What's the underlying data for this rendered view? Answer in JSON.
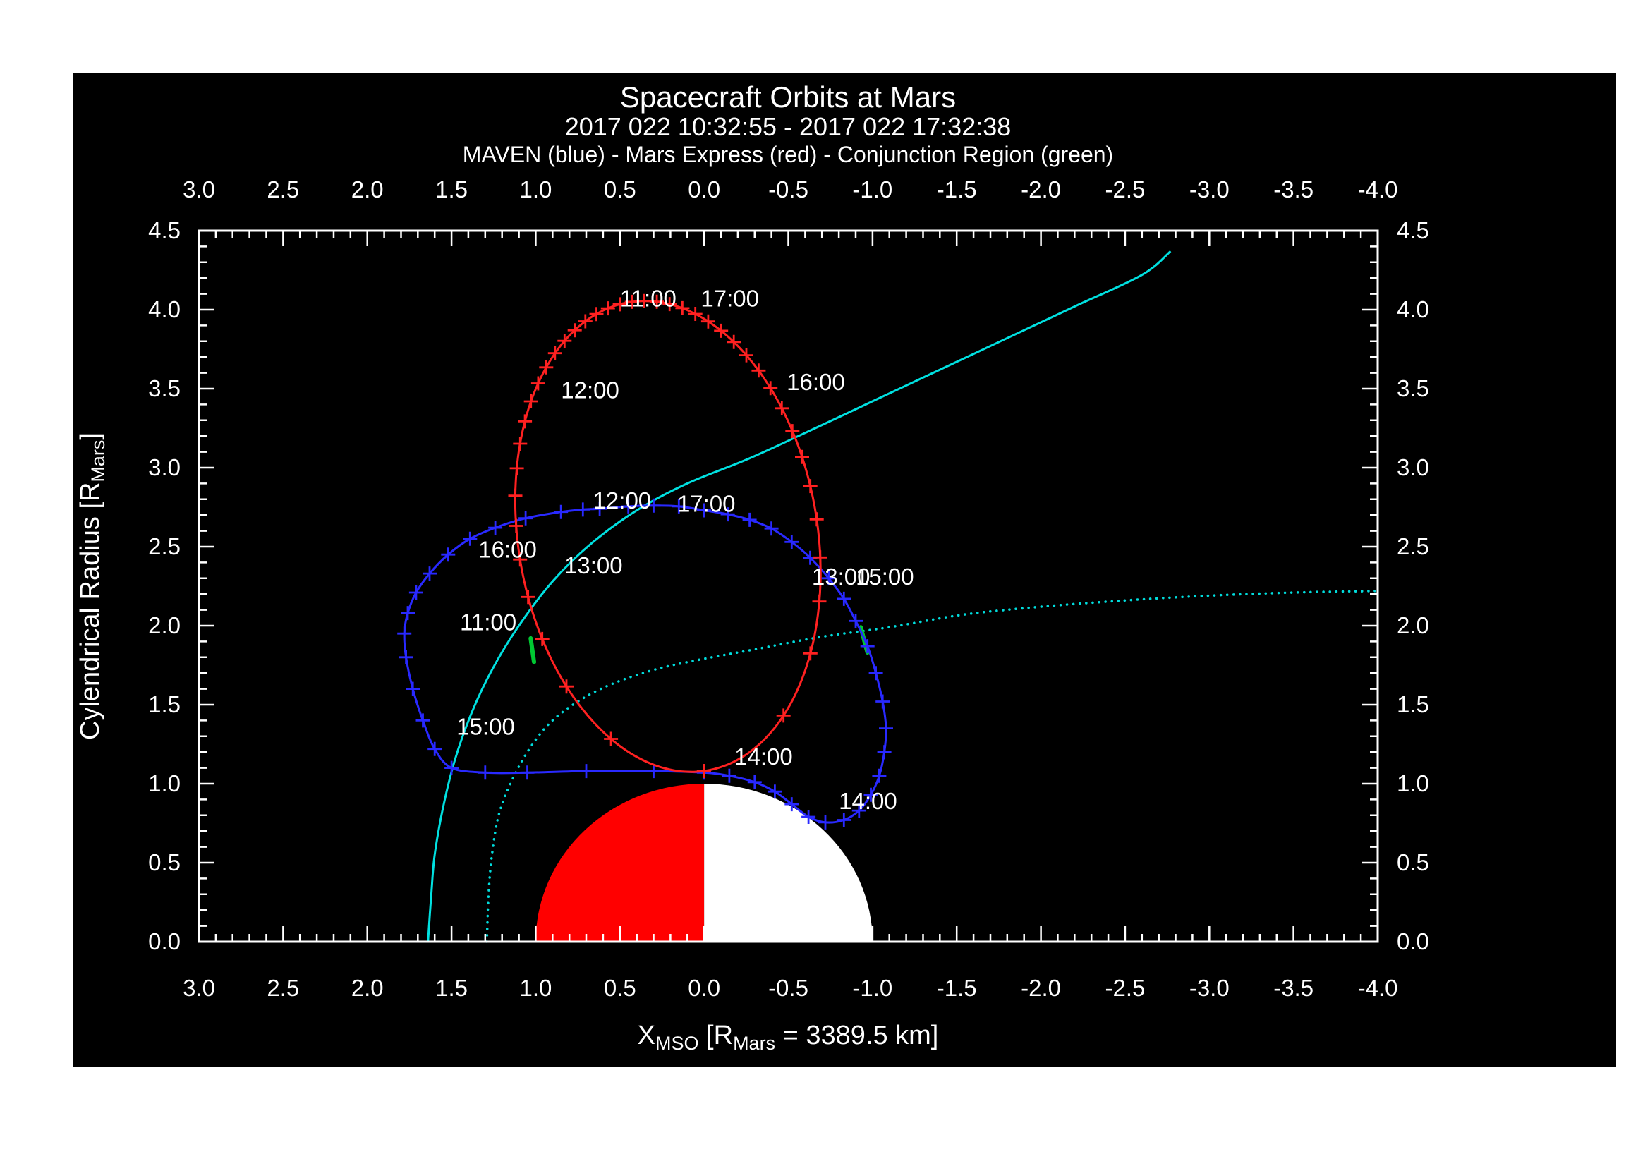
{
  "page": {
    "background": "#ffffff",
    "plot_background": "#000000"
  },
  "chart_data": {
    "type": "line",
    "title": "Spacecraft Orbits at Mars",
    "subtitle": "2017 022 10:32:55 - 2017 022 17:32:38",
    "legend": "MAVEN (blue) - Mars Express (red) - Conjunction Region (green)",
    "xlabel_parts": {
      "main": "X",
      "main_sub": "MSO",
      "mid": " [R",
      "mid_sub": "Mars",
      "end": " = 3389.5 km]"
    },
    "ylabel_parts": {
      "main": "Cylendrical Radius [R",
      "main_sub": "Mars",
      "end": "]"
    },
    "xlim": [
      3.0,
      -4.0
    ],
    "ylim": [
      0.0,
      4.5
    ],
    "x_tick_labels": [
      "3.0",
      "2.5",
      "2.0",
      "1.5",
      "1.0",
      "0.5",
      "0.0",
      "-0.5",
      "-1.0",
      "-1.5",
      "-2.0",
      "-2.5",
      "-3.0",
      "-3.5",
      "-4.0"
    ],
    "y_tick_labels": [
      "0.0",
      "0.5",
      "1.0",
      "1.5",
      "2.0",
      "2.5",
      "3.0",
      "3.5",
      "4.0",
      "4.5"
    ],
    "minor_tick_step": 0.1,
    "colors": {
      "maven": "#2929ff",
      "mex": "#ff2121",
      "bow_shock": "#00e0e0",
      "imb": "#00dcdc",
      "conjunction": "#00c832",
      "frame": "#ffffff",
      "mars_day": "#ff0000",
      "mars_night": "#ffffff"
    },
    "mars": {
      "radius": 1.0,
      "day_color": "#ff0000",
      "night_color": "#ffffff"
    },
    "series": {
      "maven_orbit": {
        "name": "MAVEN",
        "color_key": "maven",
        "closed": true,
        "points": [
          [
            0.85,
            2.72
          ],
          [
            0.72,
            2.735
          ],
          [
            0.62,
            2.74
          ],
          [
            0.45,
            2.755
          ],
          [
            0.3,
            2.76
          ],
          [
            0.15,
            2.755
          ],
          [
            0.0,
            2.73
          ],
          [
            -0.14,
            2.705
          ],
          [
            -0.27,
            2.67
          ],
          [
            -0.4,
            2.615
          ],
          [
            -0.52,
            2.53
          ],
          [
            -0.63,
            2.43
          ],
          [
            -0.74,
            2.3
          ],
          [
            -0.83,
            2.17
          ],
          [
            -0.9,
            2.03
          ],
          [
            -0.97,
            1.87
          ],
          [
            -1.02,
            1.7
          ],
          [
            -1.06,
            1.52
          ],
          [
            -1.08,
            1.35
          ],
          [
            -1.07,
            1.2
          ],
          [
            -1.04,
            1.05
          ],
          [
            -0.99,
            0.93
          ],
          [
            -0.92,
            0.83
          ],
          [
            -0.83,
            0.77
          ],
          [
            -0.72,
            0.755
          ],
          [
            -0.62,
            0.79
          ],
          [
            -0.52,
            0.87
          ],
          [
            -0.42,
            0.95
          ],
          [
            -0.3,
            1.01
          ],
          [
            -0.15,
            1.05
          ],
          [
            0.0,
            1.07
          ],
          [
            0.3,
            1.08
          ],
          [
            0.7,
            1.08
          ],
          [
            1.05,
            1.07
          ],
          [
            1.3,
            1.07
          ],
          [
            1.5,
            1.1
          ],
          [
            1.6,
            1.22
          ],
          [
            1.67,
            1.4
          ],
          [
            1.73,
            1.6
          ],
          [
            1.77,
            1.8
          ],
          [
            1.78,
            1.95
          ],
          [
            1.76,
            2.08
          ],
          [
            1.71,
            2.21
          ],
          [
            1.63,
            2.33
          ],
          [
            1.52,
            2.45
          ],
          [
            1.39,
            2.55
          ],
          [
            1.24,
            2.62
          ],
          [
            1.06,
            2.68
          ]
        ]
      },
      "mex_orbit": {
        "name": "Mars Express",
        "color_key": "mex",
        "ellipse": {
          "center": [
            0.215,
            2.565
          ],
          "a": 1.5,
          "b": 0.89,
          "tilt_deg": 8.2,
          "ecc": 0.81,
          "n_marks": 42
        }
      },
      "bow_shock": {
        "color_key": "bow_shock",
        "style": "solid",
        "points": [
          [
            1.64,
            0.0
          ],
          [
            1.62,
            0.3
          ],
          [
            1.6,
            0.55
          ],
          [
            1.55,
            0.85
          ],
          [
            1.48,
            1.15
          ],
          [
            1.38,
            1.45
          ],
          [
            1.26,
            1.72
          ],
          [
            1.1,
            2.0
          ],
          [
            0.9,
            2.28
          ],
          [
            0.67,
            2.52
          ],
          [
            0.4,
            2.73
          ],
          [
            0.1,
            2.9
          ],
          [
            -0.25,
            3.05
          ],
          [
            -0.6,
            3.22
          ],
          [
            -1.0,
            3.42
          ],
          [
            -1.4,
            3.62
          ],
          [
            -1.8,
            3.82
          ],
          [
            -2.2,
            4.02
          ],
          [
            -2.6,
            4.22
          ],
          [
            -2.77,
            4.37
          ]
        ]
      },
      "induced_boundary": {
        "color_key": "imb",
        "style": "dotted",
        "points": [
          [
            1.29,
            0.0
          ],
          [
            1.28,
            0.3
          ],
          [
            1.26,
            0.55
          ],
          [
            1.22,
            0.8
          ],
          [
            1.15,
            1.0
          ],
          [
            1.05,
            1.2
          ],
          [
            0.92,
            1.38
          ],
          [
            0.75,
            1.52
          ],
          [
            0.55,
            1.63
          ],
          [
            0.3,
            1.72
          ],
          [
            0.05,
            1.78
          ],
          [
            -0.3,
            1.85
          ],
          [
            -0.7,
            1.93
          ],
          [
            -1.1,
            1.99
          ],
          [
            -1.54,
            2.07
          ],
          [
            -2.0,
            2.12
          ],
          [
            -2.5,
            2.16
          ],
          [
            -3.0,
            2.19
          ],
          [
            -3.5,
            2.21
          ],
          [
            -4.0,
            2.22
          ]
        ]
      },
      "conjunction": {
        "name": "Conjunction Region",
        "color_key": "conjunction",
        "segments": [
          [
            [
              1.03,
              1.92
            ],
            [
              1.01,
              1.77
            ]
          ],
          [
            [
              -0.93,
              1.99
            ],
            [
              -0.97,
              1.83
            ]
          ]
        ]
      }
    },
    "time_labels": [
      {
        "series": "mex",
        "text": "11:00",
        "x": 0.5,
        "y": 4.02
      },
      {
        "series": "mex",
        "text": "17:00",
        "x": 0.02,
        "y": 4.02
      },
      {
        "series": "mex",
        "text": "12:00",
        "x": 0.85,
        "y": 3.44
      },
      {
        "series": "mex",
        "text": "16:00",
        "x": -0.49,
        "y": 3.49
      },
      {
        "series": "mex",
        "text": "13:00",
        "x": 0.83,
        "y": 2.33
      },
      {
        "series": "mex",
        "text": "15:00",
        "x": -0.9,
        "y": 2.26
      },
      {
        "series": "mex",
        "text": "14:00",
        "x": -0.18,
        "y": 1.12
      },
      {
        "series": "maven",
        "text": "11:00",
        "x": 1.45,
        "y": 1.97
      },
      {
        "series": "maven",
        "text": "12:00",
        "x": 0.66,
        "y": 2.74
      },
      {
        "series": "maven",
        "text": "17:00",
        "x": 0.16,
        "y": 2.72
      },
      {
        "series": "maven",
        "text": "16:00",
        "x": 1.34,
        "y": 2.43
      },
      {
        "series": "maven",
        "text": "15:00",
        "x": 1.47,
        "y": 1.31
      },
      {
        "series": "maven",
        "text": "13:00",
        "x": -0.64,
        "y": 2.26
      },
      {
        "series": "maven",
        "text": "14:00",
        "x": -0.8,
        "y": 0.84
      }
    ]
  }
}
